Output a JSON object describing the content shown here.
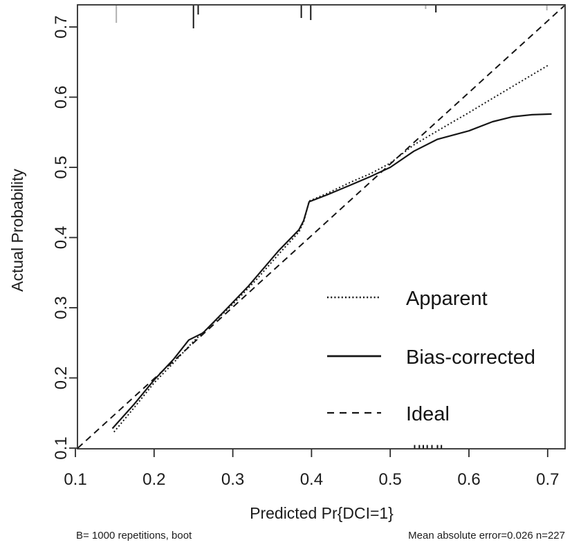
{
  "chart_data": {
    "type": "line",
    "title": "",
    "xlabel": "Predicted Pr{DCI=1}",
    "ylabel": "Actual Probability",
    "xlim": [
      0.1,
      0.72
    ],
    "ylim": [
      0.1,
      0.73
    ],
    "xticks": [
      0.1,
      0.2,
      0.3,
      0.4,
      0.5,
      0.6,
      0.7
    ],
    "yticks": [
      0.1,
      0.2,
      0.3,
      0.4,
      0.5,
      0.6,
      0.7
    ],
    "grid": false,
    "legend_position": "inside-right-middle",
    "series": [
      {
        "name": "Apparent",
        "style": "dotted",
        "points": [
          [
            0.149,
            0.123
          ],
          [
            0.175,
            0.158
          ],
          [
            0.2,
            0.193
          ],
          [
            0.225,
            0.222
          ],
          [
            0.25,
            0.252
          ],
          [
            0.275,
            0.278
          ],
          [
            0.3,
            0.305
          ],
          [
            0.33,
            0.34
          ],
          [
            0.358,
            0.376
          ],
          [
            0.384,
            0.408
          ],
          [
            0.39,
            0.422
          ],
          [
            0.397,
            0.452
          ],
          [
            0.42,
            0.463
          ],
          [
            0.45,
            0.479
          ],
          [
            0.475,
            0.491
          ],
          [
            0.5,
            0.506
          ],
          [
            0.53,
            0.532
          ],
          [
            0.56,
            0.552
          ],
          [
            0.6,
            0.578
          ],
          [
            0.625,
            0.595
          ],
          [
            0.655,
            0.615
          ],
          [
            0.7,
            0.645
          ]
        ]
      },
      {
        "name": "Bias-corrected",
        "style": "solid",
        "points": [
          [
            0.147,
            0.128
          ],
          [
            0.175,
            0.163
          ],
          [
            0.2,
            0.197
          ],
          [
            0.225,
            0.227
          ],
          [
            0.244,
            0.254
          ],
          [
            0.262,
            0.264
          ],
          [
            0.29,
            0.296
          ],
          [
            0.32,
            0.331
          ],
          [
            0.358,
            0.381
          ],
          [
            0.384,
            0.411
          ],
          [
            0.39,
            0.424
          ],
          [
            0.397,
            0.451
          ],
          [
            0.42,
            0.461
          ],
          [
            0.45,
            0.475
          ],
          [
            0.475,
            0.487
          ],
          [
            0.5,
            0.5
          ],
          [
            0.53,
            0.523
          ],
          [
            0.56,
            0.54
          ],
          [
            0.6,
            0.552
          ],
          [
            0.63,
            0.565
          ],
          [
            0.655,
            0.572
          ],
          [
            0.68,
            0.575
          ],
          [
            0.705,
            0.576
          ]
        ]
      },
      {
        "name": "Ideal",
        "style": "dashed",
        "points": [
          [
            0.103,
            0.1
          ],
          [
            0.721,
            0.73
          ]
        ]
      }
    ],
    "top_rug": {
      "marks": [
        {
          "x": 0.152,
          "len": 25,
          "shade": "gray"
        },
        {
          "x": 0.25,
          "len": 33,
          "shade": "black"
        },
        {
          "x": 0.256,
          "len": 13,
          "shade": "black"
        },
        {
          "x": 0.387,
          "len": 18,
          "shade": "black"
        },
        {
          "x": 0.399,
          "len": 21,
          "shade": "black"
        },
        {
          "x": 0.545,
          "len": 5,
          "shade": "gray"
        },
        {
          "x": 0.558,
          "len": 10,
          "shade": "black"
        },
        {
          "x": 0.699,
          "len": 7,
          "shade": "gray"
        }
      ]
    },
    "bottom_rug": {
      "marks_x": [
        0.531,
        0.537,
        0.542,
        0.547,
        0.553,
        0.56,
        0.565
      ],
      "len": 5
    }
  },
  "legend": {
    "items": [
      {
        "label": "Apparent",
        "style": "dotted"
      },
      {
        "label": "Bias-corrected",
        "style": "solid"
      },
      {
        "label": "Ideal",
        "style": "dashed"
      }
    ]
  },
  "annotations": {
    "bottom_left": "B= 1000 repetitions, boot",
    "bottom_right": "Mean absolute error=0.026 n=227"
  },
  "colors": {
    "line": "#161616",
    "text": "#1c1c1c",
    "rug_gray": "#b0b0b0",
    "background": "#ffffff"
  }
}
